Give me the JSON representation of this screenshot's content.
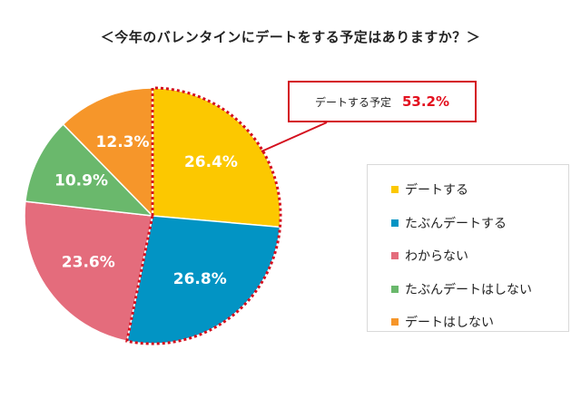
{
  "title": "＜今年のバレンタインにデートをする予定はありますか？＞",
  "callout": {
    "label": "デートする予定",
    "value": "53.2%"
  },
  "colors": {
    "highlight_border": "#d40f1e",
    "callout_value": "#e3101e"
  },
  "chart_data": {
    "type": "pie",
    "title": "＜今年のバレンタインにデートをする予定はありますか？＞",
    "unit": "%",
    "legend_position": "right",
    "slices": [
      {
        "name": "デートする",
        "value": 26.4,
        "label": "26.4%",
        "color": "#fcc800"
      },
      {
        "name": "たぶんデートする",
        "value": 26.8,
        "label": "26.8%",
        "color": "#0294c4"
      },
      {
        "name": "わからない",
        "value": 23.6,
        "label": "23.6%",
        "color": "#e46c7c"
      },
      {
        "name": "たぶんデートはしない",
        "value": 10.9,
        "label": "10.9%",
        "color": "#6ab86c"
      },
      {
        "name": "デートはしない",
        "value": 12.3,
        "label": "12.3%",
        "color": "#f6962a"
      }
    ],
    "highlighted": [
      "デートする",
      "たぶんデートする"
    ]
  }
}
